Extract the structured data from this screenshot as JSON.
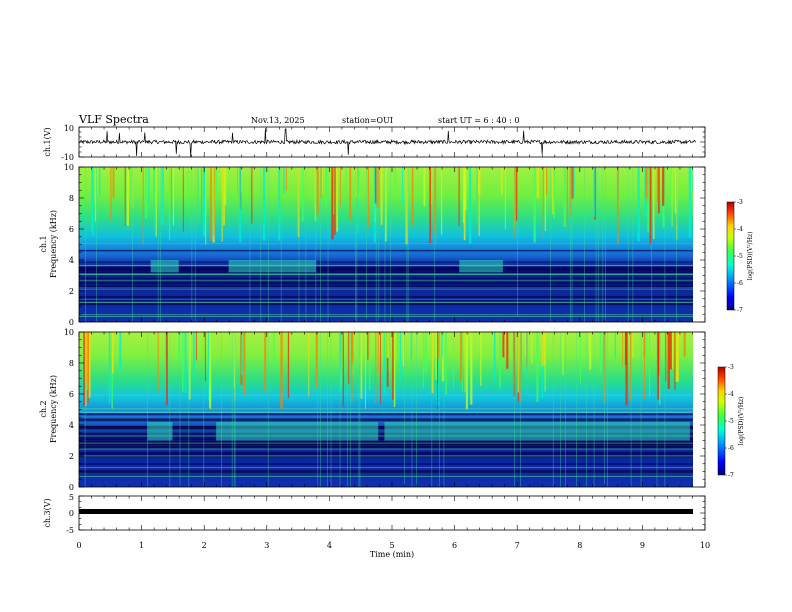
{
  "header": {
    "title": "VLF Spectra",
    "date": "Nov.13, 2025",
    "station": "station=OUI",
    "start_ut": "start  UT =  6 : 40 : 0"
  },
  "colors": {
    "waveform": "#000000",
    "background_floor": "#0a1a7a",
    "colormap": [
      "#000080",
      "#0000ff",
      "#00a0ff",
      "#00ffd0",
      "#40ff40",
      "#d0ff00",
      "#ffd000",
      "#ff4000",
      "#b00000"
    ]
  },
  "chart_data": [
    {
      "type": "line",
      "name": "ch.1 waveform",
      "ylabel": "ch.1(V)",
      "ylim": [
        -10,
        10
      ],
      "y_ticks": [
        "10",
        "-10"
      ],
      "xlim": [
        0,
        10
      ],
      "baseline": 0,
      "spikes_x_min": [
        0.45,
        0.65,
        0.92,
        1.05,
        1.55,
        1.78,
        2.45,
        2.98,
        3.3,
        4.3,
        5.9,
        7.1,
        7.4
      ]
    },
    {
      "type": "heatmap",
      "name": "ch.1 spectrogram",
      "ylabel": "ch.1",
      "ylabel2": "Frequency (kHz)",
      "ylim": [
        0,
        10
      ],
      "y_ticks": [
        "0",
        "2",
        "4",
        "6",
        "8",
        "10"
      ],
      "xlim": [
        0,
        9.85
      ],
      "colorbar": {
        "label": "log(PSD)(V²/Hz)",
        "range": [
          -7,
          -3
        ],
        "ticks": [
          "-3",
          "-4",
          "-5",
          "-6",
          "-7"
        ]
      },
      "chorus_band_khz": [
        3.2,
        4.0
      ],
      "chorus_intervals_min": [
        [
          1.15,
          1.6
        ],
        [
          2.4,
          3.8
        ],
        [
          6.1,
          6.8
        ]
      ]
    },
    {
      "type": "heatmap",
      "name": "ch.2 spectrogram",
      "ylabel": "ch.2",
      "ylabel2": "Frequency (kHz)",
      "ylim": [
        0,
        10
      ],
      "y_ticks": [
        "0",
        "2",
        "4",
        "6",
        "8",
        "10"
      ],
      "xlim": [
        0,
        9.85
      ],
      "colorbar": {
        "label": "log(PSD)(V²/Hz)",
        "range": [
          -7,
          -3
        ],
        "ticks": [
          "-3",
          "-4",
          "-5",
          "-6",
          "-7"
        ]
      },
      "chorus_band_khz": [
        3.0,
        4.2
      ],
      "chorus_intervals_min": [
        [
          1.1,
          1.5
        ],
        [
          2.2,
          4.8
        ],
        [
          4.9,
          9.8
        ]
      ]
    },
    {
      "type": "line",
      "name": "ch.3 waveform",
      "ylabel": "ch.3(V)",
      "ylim": [
        -5,
        5
      ],
      "y_ticks": [
        "5",
        "0",
        "-5"
      ],
      "xlim": [
        0,
        10
      ],
      "level": -1
    }
  ],
  "xaxis": {
    "label": "Time (min)",
    "ticks": [
      "0",
      "1",
      "2",
      "3",
      "4",
      "5",
      "6",
      "7",
      "8",
      "9",
      "10"
    ]
  }
}
